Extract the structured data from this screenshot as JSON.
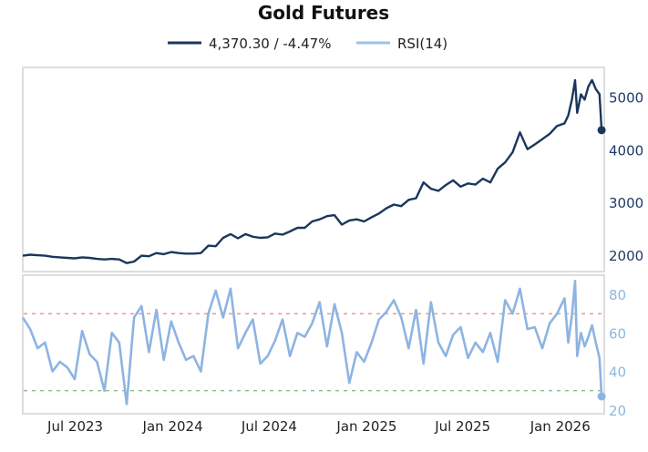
{
  "chart_data": {
    "type": "line",
    "title": "Gold Futures",
    "legend_placement": "top-center",
    "legend": [
      "4,370.30 / -4.47%",
      "RSI(14)"
    ],
    "colors": {
      "price": "#1b365d",
      "rsi": "#8db4e2",
      "overbought": "#f08080",
      "oversold": "#8cbf8c",
      "frame": "#dddddd"
    },
    "x": [
      "2023-03-24",
      "2023-04-07",
      "2023-04-21",
      "2023-05-05",
      "2023-05-19",
      "2023-06-02",
      "2023-06-16",
      "2023-06-30",
      "2023-07-14",
      "2023-07-28",
      "2023-08-11",
      "2023-08-25",
      "2023-09-08",
      "2023-09-22",
      "2023-10-06",
      "2023-10-20",
      "2023-11-03",
      "2023-11-17",
      "2023-12-01",
      "2023-12-15",
      "2023-12-29",
      "2024-01-12",
      "2024-01-26",
      "2024-02-09",
      "2024-02-23",
      "2024-03-08",
      "2024-03-22",
      "2024-04-05",
      "2024-04-19",
      "2024-05-03",
      "2024-05-17",
      "2024-05-31",
      "2024-06-14",
      "2024-06-28",
      "2024-07-12",
      "2024-07-26",
      "2024-08-09",
      "2024-08-23",
      "2024-09-06",
      "2024-09-20",
      "2024-10-04",
      "2024-10-18",
      "2024-11-01",
      "2024-11-15",
      "2024-11-29",
      "2024-12-13",
      "2024-12-27",
      "2025-01-10",
      "2025-01-24",
      "2025-02-07",
      "2025-02-21",
      "2025-03-07",
      "2025-03-21",
      "2025-04-04",
      "2025-04-18",
      "2025-05-02",
      "2025-05-16",
      "2025-05-30",
      "2025-06-13",
      "2025-06-27",
      "2025-07-11",
      "2025-07-25",
      "2025-08-08",
      "2025-08-22",
      "2025-09-05",
      "2025-09-19",
      "2025-10-03",
      "2025-10-17",
      "2025-10-31",
      "2025-11-14",
      "2025-11-28",
      "2025-12-12",
      "2025-12-26",
      "2026-01-09",
      "2026-01-16",
      "2026-01-23",
      "2026-01-29",
      "2026-02-02",
      "2026-02-09",
      "2026-02-16",
      "2026-02-23",
      "2026-03-02",
      "2026-03-09",
      "2026-03-16",
      "2026-03-20"
    ],
    "series": [
      {
        "name": "4,370.30 / -4.47%",
        "panel": "price",
        "values": [
          1990,
          2010,
          2000,
          1990,
          1970,
          1960,
          1950,
          1940,
          1960,
          1950,
          1930,
          1920,
          1930,
          1920,
          1850,
          1880,
          1990,
          1980,
          2040,
          2020,
          2060,
          2040,
          2030,
          2030,
          2040,
          2180,
          2170,
          2330,
          2400,
          2320,
          2400,
          2350,
          2330,
          2340,
          2410,
          2390,
          2450,
          2520,
          2520,
          2640,
          2680,
          2740,
          2760,
          2580,
          2660,
          2680,
          2640,
          2720,
          2790,
          2890,
          2960,
          2930,
          3050,
          3080,
          3380,
          3260,
          3220,
          3330,
          3420,
          3300,
          3360,
          3340,
          3450,
          3380,
          3640,
          3760,
          3950,
          4330,
          4010,
          4100,
          4200,
          4300,
          4450,
          4500,
          4650,
          4950,
          5320,
          4700,
          5050,
          4950,
          5200,
          5320,
          5150,
          5050,
          4370.3
        ]
      },
      {
        "name": "RSI(14)",
        "panel": "rsi",
        "values": [
          68,
          62,
          52,
          55,
          40,
          45,
          42,
          36,
          61,
          49,
          45,
          30,
          60,
          55,
          23,
          68,
          74,
          50,
          72,
          46,
          66,
          55,
          46,
          48,
          40,
          70,
          82,
          68,
          83,
          52,
          60,
          67,
          44,
          48,
          56,
          67,
          48,
          60,
          58,
          65,
          76,
          53,
          75,
          60,
          34,
          50,
          45,
          55,
          67,
          71,
          77,
          68,
          52,
          72,
          44,
          76,
          55,
          48,
          59,
          63,
          47,
          55,
          50,
          60,
          45,
          77,
          70,
          83,
          62,
          63,
          52,
          65,
          70,
          78,
          55,
          69,
          87,
          48,
          60,
          53,
          58,
          64,
          55,
          47,
          27
        ]
      }
    ],
    "price_axis": {
      "ylim": [
        1690,
        5560
      ],
      "ticks": [
        "2000",
        "3000",
        "4000",
        "5000"
      ],
      "tick_values": [
        2000,
        3000,
        4000,
        5000
      ],
      "position": "right"
    },
    "rsi_axis": {
      "ylim": [
        18,
        90
      ],
      "ticks": [
        "20",
        "40",
        "60",
        "80"
      ],
      "tick_values": [
        20,
        40,
        60,
        80
      ],
      "position": "right",
      "reference_lines": [
        70,
        30
      ]
    },
    "x_axis": {
      "xlim": [
        "2023-03-24",
        "2026-03-25"
      ],
      "ticks": [
        "Jul 2023",
        "Jan 2024",
        "Jul 2024",
        "Jan 2025",
        "Jul 2025",
        "Jan 2026"
      ],
      "tick_dates": [
        "2023-07-01",
        "2024-01-01",
        "2024-07-01",
        "2025-01-01",
        "2025-07-01",
        "2026-01-01"
      ]
    },
    "grid": false
  }
}
